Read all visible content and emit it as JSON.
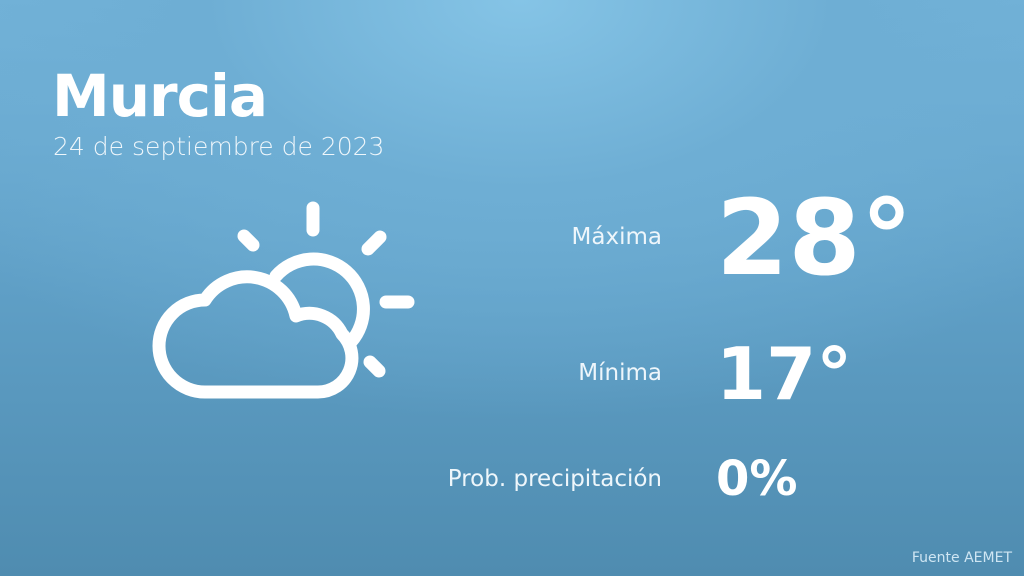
{
  "city": "Murcia",
  "date": "24 de septiembre de 2023",
  "weather_icon": "partly-cloudy-icon",
  "stats": [
    {
      "label": "Máxima",
      "value": "28°"
    },
    {
      "label": "Mínima",
      "value": "17°"
    },
    {
      "label": "Prob. precipitación",
      "value": "0%"
    }
  ],
  "source": "Fuente AEMET"
}
